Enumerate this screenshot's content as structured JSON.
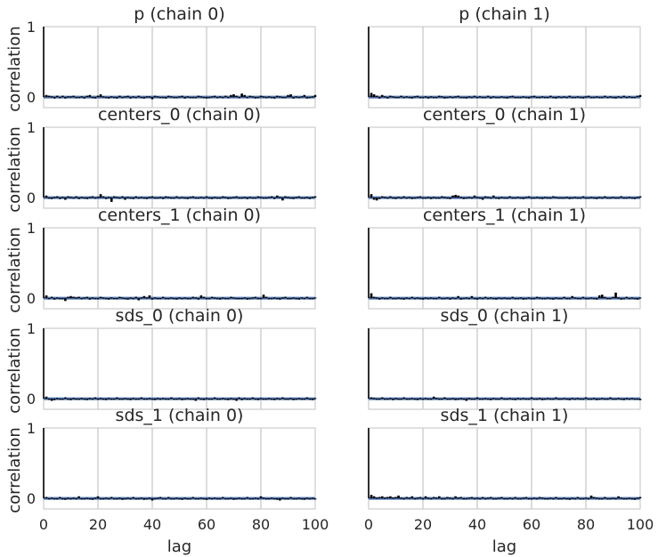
{
  "chart_data": {
    "type": "autocorrelation-grid",
    "xlabel": "lag",
    "ylabel": "correlation",
    "xlim": [
      0,
      100
    ],
    "ylim": [
      -0.15,
      1.0
    ],
    "xticks": [
      "0",
      "20",
      "40",
      "60",
      "80",
      "100"
    ],
    "yticks": [
      "0",
      "1"
    ],
    "grid": true,
    "bar_color": "#000000",
    "zero_line_color": "#4c72b0",
    "panels": [
      {
        "title": "p (chain 0)",
        "values": [
          1.0,
          0.03,
          0.02,
          0.01,
          -0.02,
          0.02,
          -0.01,
          0.02,
          -0.02,
          0.01,
          0.01,
          0.02,
          -0.01,
          -0.01,
          0.01,
          -0.02,
          0.02,
          0.03,
          -0.01,
          -0.02,
          0.02,
          0.04,
          0.01,
          -0.01,
          -0.02,
          0.01,
          0.0,
          -0.02,
          0.02,
          -0.01,
          0.01,
          0.02,
          -0.02,
          0.01,
          0.0,
          0.02,
          -0.01,
          -0.02,
          0.01,
          0.01,
          -0.03,
          0.02,
          0.01,
          0.0,
          -0.01,
          -0.02,
          0.02,
          0.01,
          0.0,
          -0.01,
          0.01,
          0.02,
          -0.02,
          0.01,
          -0.01,
          0.0,
          -0.01,
          0.02,
          0.01,
          0.0,
          -0.02,
          0.0,
          0.01,
          0.02,
          -0.01,
          0.01,
          0.0,
          0.02,
          -0.01,
          0.03,
          0.04,
          0.02,
          -0.01,
          0.05,
          0.03,
          -0.01,
          0.02,
          0.01,
          -0.02,
          0.0,
          0.02,
          0.01,
          -0.01,
          0.01,
          0.0,
          -0.02,
          0.02,
          0.01,
          0.0,
          -0.01,
          0.03,
          0.04,
          -0.02,
          0.01,
          0.0,
          0.01,
          0.03,
          -0.02,
          0.0,
          0.01,
          0.03
        ]
      },
      {
        "title": "p (chain 1)",
        "values": [
          1.0,
          0.06,
          0.04,
          0.02,
          -0.02,
          0.03,
          0.01,
          -0.02,
          0.02,
          0.01,
          -0.01,
          0.0,
          0.02,
          -0.01,
          0.01,
          0.0,
          -0.02,
          0.01,
          0.02,
          -0.01,
          0.0,
          0.01,
          -0.02,
          0.01,
          0.0,
          -0.01,
          0.02,
          0.01,
          -0.02,
          0.0,
          0.01,
          -0.01,
          0.01,
          0.02,
          -0.01,
          0.0,
          -0.02,
          0.01,
          0.0,
          0.02,
          -0.01,
          0.01,
          -0.01,
          0.0,
          0.02,
          -0.02,
          0.01,
          0.0,
          -0.01,
          0.01,
          0.0,
          -0.02,
          0.01,
          0.02,
          -0.01,
          0.0,
          -0.01,
          0.01,
          0.0,
          -0.02,
          0.01,
          0.02,
          0.0,
          -0.01,
          0.01,
          0.0,
          -0.01,
          0.02,
          0.0,
          -0.02,
          0.01,
          0.0,
          0.01,
          -0.01,
          0.02,
          0.0,
          -0.01,
          0.01,
          0.0,
          -0.02,
          0.01,
          0.02,
          -0.01,
          0.0,
          0.01,
          -0.01,
          0.0,
          0.02,
          -0.01,
          0.01,
          0.0,
          -0.02,
          0.01,
          0.0,
          0.02,
          -0.01,
          0.01,
          0.0,
          -0.01,
          0.02,
          0.03
        ]
      },
      {
        "title": "centers_0 (chain 0)",
        "values": [
          1.0,
          0.03,
          -0.01,
          -0.02,
          0.01,
          0.02,
          -0.02,
          0.01,
          -0.03,
          0.02,
          0.01,
          -0.01,
          0.02,
          -0.02,
          0.01,
          0.0,
          -0.02,
          0.01,
          0.02,
          -0.01,
          0.01,
          0.05,
          0.02,
          -0.02,
          0.01,
          -0.06,
          0.02,
          0.01,
          -0.01,
          0.02,
          -0.03,
          0.01,
          0.0,
          -0.02,
          0.02,
          -0.01,
          0.01,
          0.0,
          -0.02,
          0.01,
          0.02,
          -0.01,
          0.0,
          0.01,
          -0.02,
          0.02,
          0.01,
          -0.01,
          0.0,
          0.02,
          -0.01,
          0.01,
          0.0,
          -0.02,
          0.01,
          0.02,
          -0.01,
          0.0,
          0.01,
          -0.01,
          0.02,
          0.0,
          -0.02,
          0.01,
          0.0,
          -0.01,
          0.02,
          0.01,
          -0.02,
          0.0,
          0.01,
          0.02,
          -0.01,
          0.0,
          0.01,
          -0.02,
          0.01,
          0.0,
          -0.01,
          0.02,
          0.01,
          0.0,
          -0.01,
          0.01,
          0.02,
          -0.02,
          0.03,
          0.01,
          -0.04,
          0.02,
          0.01,
          0.0,
          -0.02,
          0.01,
          0.02,
          -0.01,
          0.0,
          0.01,
          -0.02,
          0.01,
          0.02
        ]
      },
      {
        "title": "centers_0 (chain 1)",
        "values": [
          1.0,
          0.05,
          -0.03,
          -0.04,
          -0.02,
          0.02,
          0.01,
          -0.01,
          0.02,
          0.0,
          -0.02,
          0.01,
          0.0,
          0.02,
          -0.01,
          0.01,
          -0.02,
          0.0,
          0.01,
          0.02,
          -0.01,
          0.0,
          0.01,
          -0.02,
          0.01,
          0.0,
          -0.01,
          0.02,
          0.01,
          0.0,
          -0.02,
          0.03,
          0.04,
          0.03,
          0.01,
          -0.02,
          0.0,
          0.01,
          -0.01,
          0.03,
          0.01,
          0.0,
          -0.03,
          0.02,
          0.01,
          -0.01,
          0.03,
          0.0,
          -0.02,
          0.01,
          0.0,
          -0.01,
          0.02,
          0.0,
          -0.01,
          0.01,
          0.0,
          -0.02,
          0.01,
          0.02,
          0.0,
          -0.01,
          0.01,
          0.0,
          -0.02,
          0.01,
          0.0,
          -0.01,
          0.02,
          0.01,
          0.0,
          -0.01,
          0.0,
          0.01,
          -0.02,
          0.0,
          0.01,
          0.0,
          -0.01,
          0.02,
          0.0,
          -0.01,
          0.01,
          0.0,
          -0.02,
          0.01,
          0.0,
          0.02,
          -0.01,
          0.0,
          0.01,
          -0.01,
          0.0,
          0.02,
          0.0,
          -0.01,
          0.01,
          0.0,
          -0.02,
          0.01,
          0.02
        ]
      },
      {
        "title": "centers_1 (chain 0)",
        "values": [
          1.0,
          0.04,
          -0.01,
          0.02,
          -0.02,
          0.01,
          -0.01,
          0.0,
          -0.04,
          0.02,
          0.03,
          0.02,
          0.01,
          0.02,
          -0.01,
          0.01,
          0.02,
          -0.02,
          0.01,
          0.0,
          -0.01,
          0.02,
          0.01,
          0.0,
          -0.02,
          0.01,
          0.0,
          -0.01,
          0.02,
          0.01,
          0.0,
          -0.02,
          0.01,
          0.0,
          0.02,
          -0.03,
          0.01,
          0.03,
          0.01,
          0.04,
          -0.02,
          0.01,
          0.0,
          -0.01,
          0.02,
          0.0,
          -0.01,
          0.01,
          0.0,
          -0.02,
          0.01,
          0.0,
          0.01,
          -0.01,
          0.0,
          0.02,
          0.01,
          -0.02,
          0.04,
          0.02,
          0.0,
          -0.01,
          0.02,
          0.01,
          0.0,
          -0.02,
          0.01,
          0.0,
          -0.01,
          0.02,
          0.01,
          0.0,
          -0.01,
          0.0,
          0.01,
          -0.02,
          0.0,
          0.01,
          0.02,
          -0.01,
          0.0,
          0.05,
          0.02,
          0.0,
          -0.01,
          0.01,
          0.0,
          -0.02,
          0.01,
          0.02,
          0.0,
          -0.01,
          0.01,
          0.0,
          -0.02,
          0.01,
          0.0,
          0.02,
          -0.01,
          0.0,
          0.01
        ]
      },
      {
        "title": "centers_1 (chain 1)",
        "values": [
          1.0,
          0.07,
          0.02,
          0.01,
          -0.02,
          0.01,
          0.0,
          -0.01,
          0.02,
          0.0,
          -0.01,
          0.01,
          0.0,
          -0.02,
          0.01,
          0.0,
          0.02,
          -0.01,
          0.01,
          0.0,
          -0.02,
          0.01,
          0.0,
          0.01,
          -0.01,
          0.0,
          0.02,
          -0.01,
          0.0,
          0.01,
          -0.02,
          0.01,
          0.0,
          0.03,
          -0.02,
          0.0,
          0.01,
          -0.01,
          0.03,
          0.0,
          -0.02,
          0.01,
          0.0,
          0.02,
          -0.01,
          0.01,
          0.0,
          -0.02,
          0.01,
          0.0,
          0.01,
          -0.01,
          0.0,
          0.02,
          -0.01,
          0.0,
          0.01,
          -0.02,
          0.0,
          0.01,
          0.0,
          -0.01,
          0.02,
          0.01,
          0.0,
          -0.01,
          0.01,
          0.0,
          -0.02,
          0.01,
          0.0,
          -0.01,
          0.02,
          0.0,
          -0.01,
          0.03,
          0.01,
          0.0,
          -0.01,
          0.02,
          0.0,
          -0.01,
          0.01,
          0.0,
          -0.02,
          0.04,
          0.05,
          0.02,
          0.0,
          -0.01,
          0.02,
          0.08,
          0.01,
          -0.02,
          0.0,
          0.02,
          -0.01,
          0.01,
          0.0,
          -0.02,
          0.01
        ]
      },
      {
        "title": "sds_0 (chain 0)",
        "values": [
          1.0,
          0.03,
          -0.01,
          -0.03,
          -0.02,
          0.01,
          0.0,
          -0.01,
          0.02,
          0.0,
          -0.02,
          0.01,
          0.0,
          -0.01,
          0.01,
          0.0,
          -0.02,
          0.01,
          0.0,
          0.02,
          -0.01,
          0.01,
          0.0,
          -0.02,
          0.01,
          0.0,
          -0.01,
          0.02,
          0.0,
          -0.01,
          0.01,
          0.0,
          -0.02,
          0.01,
          0.0,
          -0.01,
          0.02,
          0.0,
          -0.01,
          0.01,
          0.0,
          -0.02,
          0.01,
          0.0,
          0.01,
          -0.01,
          0.0,
          0.02,
          -0.01,
          0.0,
          0.01,
          -0.02,
          0.0,
          0.01,
          0.0,
          -0.01,
          -0.03,
          0.02,
          0.0,
          -0.02,
          0.01,
          0.0,
          -0.01,
          0.02,
          0.0,
          -0.01,
          0.01,
          0.0,
          -0.02,
          0.01,
          0.0,
          -0.03,
          0.02,
          -0.02,
          0.01,
          0.0,
          -0.01,
          0.02,
          0.0,
          -0.02,
          0.01,
          0.0,
          -0.01,
          0.01,
          0.0,
          -0.02,
          0.01,
          0.0,
          0.02,
          -0.01,
          0.0,
          0.01,
          -0.02,
          0.0,
          0.01,
          0.0,
          -0.01,
          0.02,
          0.0,
          -0.02,
          0.01
        ]
      },
      {
        "title": "sds_0 (chain 1)",
        "values": [
          1.0,
          0.02,
          0.01,
          -0.01,
          0.0,
          0.02,
          -0.01,
          0.0,
          0.01,
          -0.02,
          0.01,
          0.0,
          -0.01,
          0.02,
          0.0,
          -0.01,
          0.01,
          0.0,
          -0.02,
          0.01,
          0.0,
          0.01,
          -0.01,
          0.0,
          0.03,
          0.01,
          -0.01,
          0.0,
          0.02,
          -0.01,
          0.0,
          0.01,
          -0.02,
          0.0,
          0.01,
          0.0,
          -0.03,
          0.01,
          0.0,
          -0.01,
          0.02,
          0.0,
          -0.01,
          0.01,
          0.0,
          -0.02,
          0.01,
          0.0,
          -0.01,
          0.02,
          0.0,
          -0.01,
          0.01,
          0.0,
          -0.02,
          0.01,
          0.0,
          0.01,
          -0.01,
          0.0,
          0.02,
          -0.01,
          0.0,
          0.01,
          -0.02,
          0.0,
          0.01,
          0.0,
          -0.01,
          0.02,
          0.0,
          -0.01,
          0.01,
          0.0,
          -0.02,
          0.01,
          0.0,
          0.01,
          -0.01,
          0.0,
          0.02,
          -0.01,
          0.0,
          0.01,
          -0.02,
          0.0,
          0.01,
          0.0,
          -0.01,
          0.02,
          0.0,
          -0.01,
          0.01,
          0.0,
          -0.02,
          0.01,
          0.0,
          0.01,
          -0.01,
          0.0,
          -0.02
        ]
      },
      {
        "title": "sds_1 (chain 0)",
        "values": [
          1.0,
          0.02,
          -0.01,
          0.01,
          0.0,
          -0.01,
          0.02,
          0.0,
          -0.02,
          0.01,
          0.0,
          0.01,
          -0.01,
          0.03,
          0.0,
          -0.01,
          0.01,
          0.0,
          -0.02,
          0.01,
          0.03,
          0.0,
          -0.01,
          0.01,
          0.0,
          0.02,
          -0.01,
          0.0,
          0.01,
          -0.02,
          0.0,
          0.01,
          0.0,
          0.02,
          -0.01,
          0.0,
          0.01,
          -0.02,
          0.0,
          0.01,
          -0.03,
          0.0,
          0.01,
          0.02,
          -0.01,
          0.0,
          0.02,
          -0.01,
          0.0,
          0.01,
          0.0,
          -0.02,
          0.01,
          0.0,
          -0.01,
          0.02,
          0.0,
          -0.01,
          0.01,
          0.0,
          -0.02,
          0.01,
          0.0,
          0.01,
          -0.01,
          0.0,
          0.02,
          -0.01,
          0.0,
          0.01,
          -0.02,
          0.0,
          0.01,
          0.0,
          -0.01,
          0.02,
          0.0,
          -0.01,
          0.01,
          0.0,
          0.03,
          0.01,
          0.0,
          -0.01,
          0.01,
          0.0,
          -0.02,
          -0.03,
          0.01,
          0.0,
          -0.01,
          0.02,
          0.0,
          -0.01,
          0.01,
          0.0,
          -0.02,
          0.01,
          0.0,
          0.01,
          -0.01
        ]
      },
      {
        "title": "sds_1 (chain 1)",
        "values": [
          1.0,
          0.05,
          0.03,
          0.01,
          0.02,
          0.03,
          0.01,
          0.02,
          0.03,
          0.01,
          0.02,
          0.04,
          0.01,
          0.0,
          0.02,
          0.01,
          0.03,
          0.0,
          0.01,
          0.02,
          -0.01,
          0.03,
          0.01,
          0.0,
          0.02,
          0.01,
          0.03,
          0.0,
          -0.01,
          0.02,
          0.01,
          0.0,
          0.03,
          0.01,
          0.02,
          0.0,
          -0.01,
          0.01,
          0.02,
          0.0,
          0.01,
          -0.01,
          0.02,
          0.0,
          0.01,
          0.02,
          -0.01,
          0.0,
          0.01,
          0.02,
          0.0,
          -0.01,
          0.01,
          0.0,
          0.02,
          -0.01,
          0.0,
          0.01,
          0.02,
          0.0,
          -0.01,
          0.01,
          0.0,
          0.02,
          0.01,
          0.0,
          -0.01,
          0.01,
          0.0,
          0.02,
          0.0,
          -0.01,
          0.01,
          0.0,
          -0.02,
          0.01,
          0.0,
          0.02,
          0.0,
          -0.01,
          0.01,
          0.0,
          0.04,
          0.02,
          0.01,
          0.0,
          -0.01,
          0.02,
          0.0,
          -0.01,
          0.01,
          0.0,
          0.03,
          0.01,
          0.0,
          -0.01,
          0.01,
          0.0,
          -0.02,
          0.01,
          0.02
        ]
      }
    ]
  }
}
